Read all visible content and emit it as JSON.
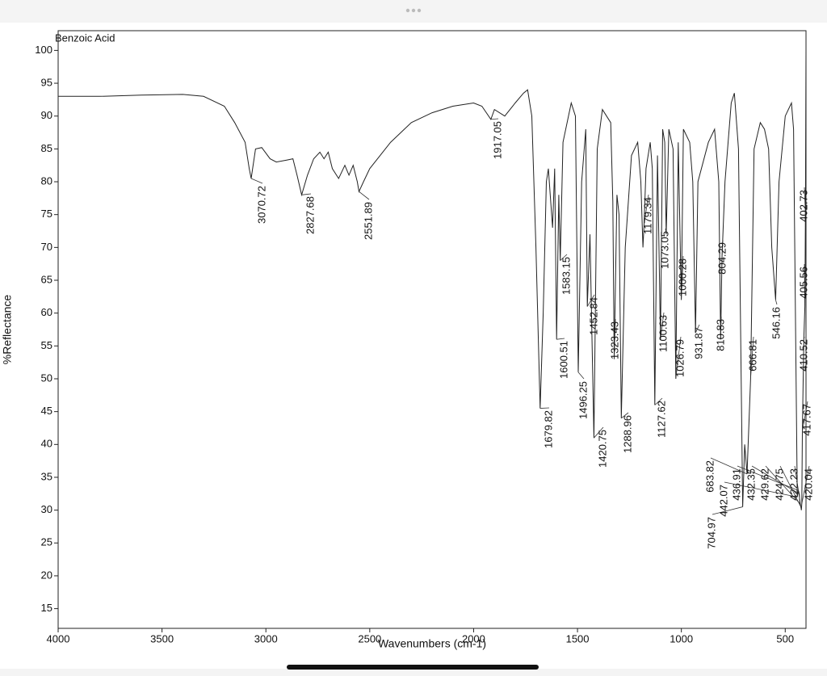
{
  "chart_data": {
    "type": "line",
    "title": "Benzoic Acid",
    "xlabel": "Wavenumbers (cm-1)",
    "ylabel": "%Reflectance",
    "xlim": [
      4000,
      400
    ],
    "xticks": [
      4000,
      3500,
      3000,
      2500,
      2000,
      1500,
      1000,
      500
    ],
    "ylim": [
      12,
      103
    ],
    "yticks": [
      15,
      20,
      25,
      30,
      35,
      40,
      45,
      50,
      55,
      60,
      65,
      70,
      75,
      80,
      85,
      90,
      95,
      100
    ],
    "color": "#222222",
    "x": [
      4000,
      3800,
      3600,
      3400,
      3300,
      3200,
      3150,
      3100,
      3080,
      3070.72,
      3050,
      3020,
      2980,
      2950,
      2900,
      2870,
      2850,
      2827.68,
      2800,
      2770,
      2740,
      2720,
      2700,
      2680,
      2650,
      2620,
      2600,
      2580,
      2560,
      2551.89,
      2530,
      2500,
      2400,
      2300,
      2200,
      2100,
      2000,
      1960,
      1917.05,
      1900,
      1850,
      1800,
      1760,
      1740,
      1720,
      1700,
      1679.82,
      1665,
      1650,
      1640,
      1620,
      1610,
      1600.51,
      1590,
      1583.15,
      1570,
      1530,
      1510,
      1496.25,
      1480,
      1460,
      1452.84,
      1440,
      1420.75,
      1405,
      1380,
      1340,
      1330,
      1323.43,
      1310,
      1300,
      1288.96,
      1270,
      1240,
      1210,
      1195,
      1185,
      1179.34,
      1170,
      1150,
      1140,
      1127.62,
      1115,
      1100.63,
      1090,
      1080,
      1073.05,
      1060,
      1040,
      1026.79,
      1015,
      1000.28,
      990,
      960,
      945,
      931.87,
      920,
      870,
      840,
      820,
      810.83,
      804.29,
      790,
      760,
      745,
      725,
      704.97,
      695,
      683.82,
      666.81,
      650,
      620,
      600,
      580,
      565,
      546.16,
      530,
      500,
      470,
      460,
      442.07,
      436.91,
      432.35,
      429.62,
      424.75,
      422.23,
      420.04,
      417.67,
      410.52,
      405.56,
      402.73,
      400
    ],
    "values": [
      93,
      93,
      93.2,
      93.3,
      93,
      91.5,
      89,
      86,
      82,
      80.5,
      85,
      85.2,
      83.5,
      83,
      83.3,
      83.5,
      81,
      78,
      81,
      83.5,
      84.5,
      83.5,
      84.5,
      82,
      80.5,
      82.5,
      81,
      82.5,
      80,
      78.5,
      80,
      82,
      86,
      89,
      90.5,
      91.5,
      92,
      91.5,
      89.5,
      91,
      90,
      92,
      93.5,
      94,
      90,
      70,
      45.5,
      60,
      80,
      82,
      73,
      82,
      56,
      78,
      68,
      86,
      92,
      90,
      51,
      80,
      88,
      61,
      72,
      41,
      85,
      91,
      89,
      77,
      53,
      78,
      75,
      44,
      70,
      84,
      86,
      80,
      70,
      73.5,
      82,
      86,
      82,
      46,
      84,
      56,
      88,
      86,
      72,
      88,
      85,
      50,
      86,
      62,
      88,
      86,
      80,
      57,
      80,
      86,
      88,
      80,
      56,
      68.5,
      80,
      92,
      93.5,
      85,
      30.5,
      40,
      35.5,
      50,
      85,
      89,
      88,
      85,
      70,
      62,
      80,
      90,
      92,
      88,
      32,
      33,
      32.5,
      31,
      30.5,
      30,
      31,
      42,
      56,
      61,
      75,
      100
    ],
    "peaks": [
      {
        "x": 3070.72,
        "y": 80.5
      },
      {
        "x": 2827.68,
        "y": 78
      },
      {
        "x": 2551.89,
        "y": 78.5
      },
      {
        "x": 1917.05,
        "y": 89.5
      },
      {
        "x": 1679.82,
        "y": 45.5
      },
      {
        "x": 1600.51,
        "y": 56
      },
      {
        "x": 1583.15,
        "y": 68
      },
      {
        "x": 1496.25,
        "y": 51
      },
      {
        "x": 1452.84,
        "y": 61
      },
      {
        "x": 1420.75,
        "y": 41
      },
      {
        "x": 1323.43,
        "y": 53
      },
      {
        "x": 1288.96,
        "y": 44
      },
      {
        "x": 1179.34,
        "y": 73.5
      },
      {
        "x": 1127.62,
        "y": 46
      },
      {
        "x": 1100.63,
        "y": 56
      },
      {
        "x": 1073.05,
        "y": 72
      },
      {
        "x": 1026.79,
        "y": 50
      },
      {
        "x": 1000.28,
        "y": 62
      },
      {
        "x": 931.87,
        "y": 57
      },
      {
        "x": 810.83,
        "y": 56
      },
      {
        "x": 804.29,
        "y": 68.5
      },
      {
        "x": 666.81,
        "y": 50
      },
      {
        "x": 546.16,
        "y": 62
      },
      {
        "x": 704.97,
        "y": 30.5
      },
      {
        "x": 683.82,
        "y": 35.5
      },
      {
        "x": 442.07,
        "y": 32
      },
      {
        "x": 436.91,
        "y": 33
      },
      {
        "x": 432.35,
        "y": 32.5
      },
      {
        "x": 429.62,
        "y": 31
      },
      {
        "x": 424.75,
        "y": 30.5
      },
      {
        "x": 422.23,
        "y": 30
      },
      {
        "x": 420.04,
        "y": 31
      },
      {
        "x": 417.67,
        "y": 42
      },
      {
        "x": 410.52,
        "y": 56
      },
      {
        "x": 405.56,
        "y": 61
      },
      {
        "x": 402.73,
        "y": 75
      }
    ]
  }
}
